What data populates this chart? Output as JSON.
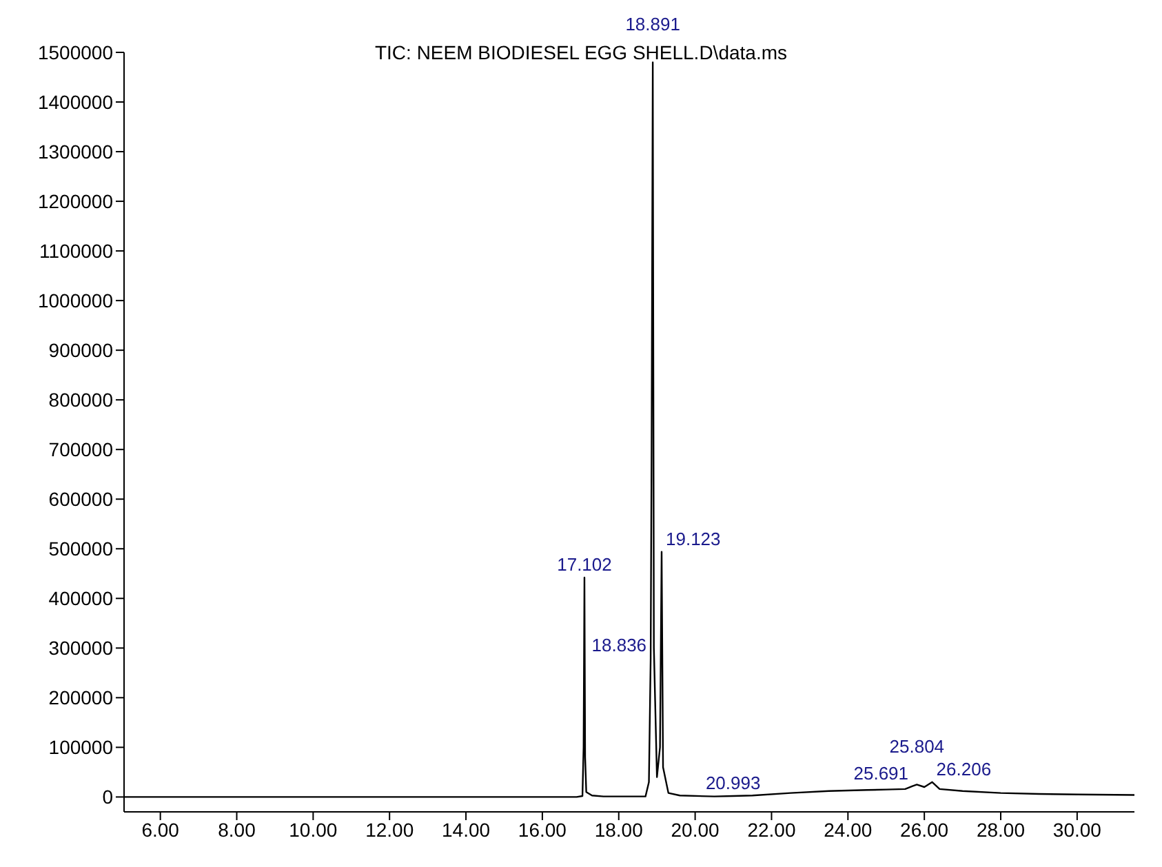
{
  "chart_data": {
    "type": "line",
    "title": "TIC: NEEM BIODIESEL EGG SHELL.D\\data.ms",
    "x": [
      5.05,
      16.9,
      17.05,
      17.08,
      17.102,
      17.12,
      17.15,
      17.3,
      17.6,
      18.7,
      18.79,
      18.836,
      18.86,
      18.891,
      18.92,
      19.0,
      19.08,
      19.123,
      19.16,
      19.3,
      19.6,
      20.5,
      20.993,
      21.5,
      22.5,
      23.5,
      24.5,
      25.0,
      25.5,
      25.691,
      25.804,
      26.0,
      26.206,
      26.4,
      27.0,
      28.0,
      29.0,
      30.0,
      31.5
    ],
    "series": [
      {
        "color": "#000000",
        "values": [
          0,
          0,
          2000,
          100000,
          442000,
          80000,
          10000,
          3000,
          1000,
          1000,
          30000,
          280000,
          700000,
          1480000,
          300000,
          40000,
          100000,
          494000,
          60000,
          8000,
          3000,
          1000,
          2000,
          3000,
          8000,
          12000,
          14000,
          15000,
          16000,
          22000,
          25000,
          20000,
          30000,
          16000,
          12000,
          8000,
          6000,
          5000,
          4000
        ]
      }
    ],
    "xlim": [
      5.05,
      31.5
    ],
    "xticks": [
      {
        "value": 6,
        "label": "6.00"
      },
      {
        "value": 8,
        "label": "8.00"
      },
      {
        "value": 10,
        "label": "10.00"
      },
      {
        "value": 12,
        "label": "12.00"
      },
      {
        "value": 14,
        "label": "14.00"
      },
      {
        "value": 16,
        "label": "16.00"
      },
      {
        "value": 18,
        "label": "18.00"
      },
      {
        "value": 20,
        "label": "20.00"
      },
      {
        "value": 22,
        "label": "22.00"
      },
      {
        "value": 24,
        "label": "24.00"
      },
      {
        "value": 26,
        "label": "26.00"
      },
      {
        "value": 28,
        "label": "28.00"
      },
      {
        "value": 30,
        "label": "30.00"
      }
    ],
    "ylim": [
      -30000,
      1500000
    ],
    "yticks": [
      0,
      100000,
      200000,
      300000,
      400000,
      500000,
      600000,
      700000,
      800000,
      900000,
      1000000,
      1100000,
      1200000,
      1300000,
      1400000,
      1500000
    ],
    "annotations": [
      {
        "text": "17.102",
        "x": 17.102,
        "y": 442000
      },
      {
        "text": "18.836",
        "x": 18.836,
        "y": 280000
      },
      {
        "text": "18.891",
        "x": 18.891,
        "y": 1480000
      },
      {
        "text": "19.123",
        "x": 19.123,
        "y": 494000
      },
      {
        "text": "20.993",
        "x": 20.993,
        "y": 2000
      },
      {
        "text": "25.691",
        "x": 25.691,
        "y": 22000
      },
      {
        "text": "25.804",
        "x": 25.804,
        "y": 25000
      },
      {
        "text": "26.206",
        "x": 26.206,
        "y": 30000
      }
    ]
  }
}
